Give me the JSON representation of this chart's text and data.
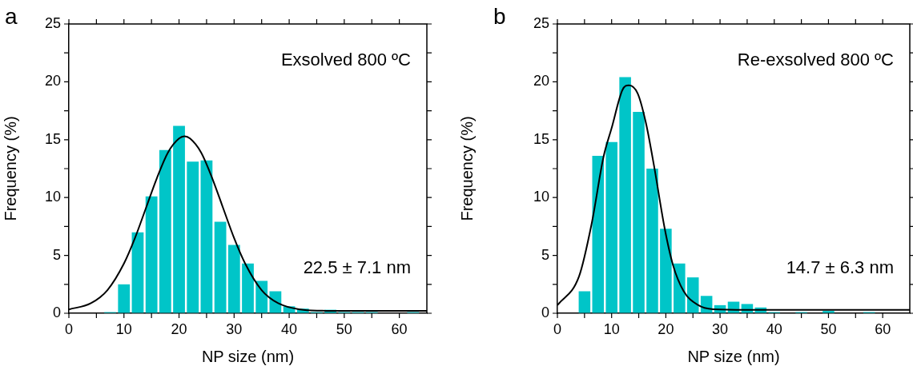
{
  "chart_data": [
    {
      "type": "histogram",
      "title": "a",
      "xlabel": "NP size (nm)",
      "ylabel": "Frequency (%)",
      "annotations": [
        "Exsolved 800 ºC",
        "22.5 ± 7.1 nm"
      ],
      "xlim": [
        0,
        65
      ],
      "xticks": [
        0,
        {
          "value": 5,
          "label": null
        },
        10,
        {
          "value": 15,
          "label": null
        },
        20,
        {
          "value": 25,
          "label": null
        },
        30,
        {
          "value": 35,
          "label": null
        },
        40,
        {
          "value": 45,
          "label": null
        },
        50,
        {
          "value": 55,
          "label": null
        },
        60
      ],
      "ylim": [
        0,
        25
      ],
      "yticks": [
        0,
        {
          "value": 2.5,
          "label": null
        },
        5,
        {
          "value": 7.5,
          "label": null
        },
        10,
        {
          "value": 12.5,
          "label": null
        },
        15,
        {
          "value": 17.5,
          "label": null
        },
        20,
        {
          "value": 22.5,
          "label": null
        },
        25
      ],
      "grid": false,
      "legend": false,
      "series": [
        {
          "color": "#00c5c8",
          "bins": [
            6.25,
            8.75,
            11.25,
            13.75,
            16.25,
            18.75,
            21.25,
            23.75,
            26.25,
            28.75,
            31.25,
            33.75,
            36.25,
            38.75,
            41.25,
            43.75,
            46.25,
            48.75,
            51.25,
            53.75,
            56.25,
            58.75,
            61.25,
            63.75
          ],
          "values": [
            0.1,
            2.5,
            7.0,
            10.1,
            14.1,
            16.2,
            13.1,
            13.2,
            7.9,
            5.9,
            4.3,
            2.8,
            1.9,
            0.6,
            0.4,
            0.1,
            0.3,
            0.1,
            0.1,
            0.1,
            null,
            0,
            0.1
          ]
        },
        {
          "type": "line",
          "color": "#000000",
          "x": [
            0,
            4,
            7,
            10,
            12,
            14,
            16,
            18,
            20,
            21,
            22,
            24,
            26,
            28,
            30,
            32,
            35,
            38,
            42,
            46,
            50,
            65
          ],
          "values": [
            0.33,
            0.87,
            2.0,
            4.3,
            6.5,
            9.1,
            11.7,
            13.9,
            15.1,
            15.3,
            15.1,
            13.9,
            11.7,
            9.1,
            6.5,
            4.3,
            2.0,
            0.87,
            0.33,
            0.22,
            0.2,
            0.2
          ]
        }
      ]
    },
    {
      "type": "histogram",
      "title": "b",
      "xlabel": "NP size (nm)",
      "ylabel": "Frequency (%)",
      "annotations": [
        "Re-exsolved 800 ºC",
        "14.7 ± 6.3 nm"
      ],
      "xlim": [
        0,
        65
      ],
      "xticks": [
        0,
        {
          "value": 5,
          "label": null
        },
        10,
        {
          "value": 15,
          "label": null
        },
        20,
        {
          "value": 25,
          "label": null
        },
        30,
        {
          "value": 35,
          "label": null
        },
        40,
        {
          "value": 45,
          "label": null
        },
        50,
        {
          "value": 55,
          "label": null
        },
        60
      ],
      "ylim": [
        0,
        25
      ],
      "yticks": [
        0,
        {
          "value": 2.5,
          "label": null
        },
        5,
        {
          "value": 7.5,
          "label": null
        },
        10,
        {
          "value": 12.5,
          "label": null
        },
        15,
        {
          "value": 17.5,
          "label": null
        },
        20,
        {
          "value": 22.5,
          "label": null
        },
        25
      ],
      "grid": false,
      "legend": false,
      "series": [
        {
          "color": "#00c5c8",
          "bins": [
            1.25,
            3.75,
            6.25,
            8.75,
            11.25,
            13.75,
            16.25,
            18.75,
            21.25,
            23.75,
            26.25,
            28.75,
            31.25,
            33.75,
            36.25,
            38.75,
            41.25,
            43.75,
            46.25,
            48.75,
            51.25,
            53.75,
            56.25,
            58.75
          ],
          "values": [
            null,
            1.9,
            13.6,
            14.8,
            20.4,
            17.4,
            12.5,
            7.3,
            4.3,
            3.1,
            1.5,
            0.7,
            1.0,
            0.8,
            0.5,
            0.1,
            0,
            0.1,
            0,
            0.2,
            0,
            0,
            0.1
          ]
        },
        {
          "type": "line",
          "color": "#000000",
          "x": [
            0,
            4,
            6.3,
            8.5,
            10,
            12,
            13.2,
            14.8,
            16.3,
            17.8,
            19.8,
            21.3,
            23.3,
            25.8,
            28.7,
            35,
            65
          ],
          "values": [
            0.7,
            3.2,
            7.7,
            13.5,
            16,
            19.3,
            19.7,
            19,
            16.5,
            12.8,
            7.3,
            4.2,
            1.9,
            0.75,
            0.35,
            0.3,
            0.3
          ]
        }
      ]
    }
  ]
}
